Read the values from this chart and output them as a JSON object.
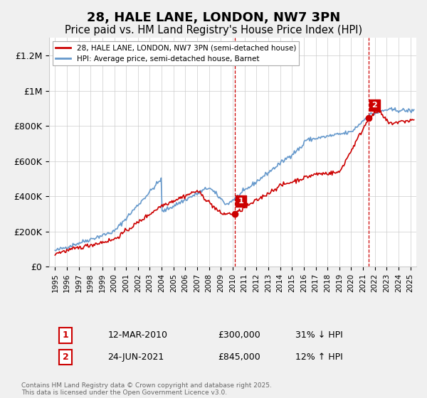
{
  "title": "28, HALE LANE, LONDON, NW7 3PN",
  "subtitle": "Price paid vs. HM Land Registry's House Price Index (HPI)",
  "title_fontsize": 13,
  "subtitle_fontsize": 10.5,
  "ylabel_ticks": [
    "£0",
    "£200K",
    "£400K",
    "£600K",
    "£800K",
    "£1M",
    "£1.2M"
  ],
  "ytick_values": [
    0,
    200000,
    400000,
    600000,
    800000,
    1000000,
    1200000
  ],
  "ylim": [
    0,
    1300000
  ],
  "xlim_start": 1994.5,
  "xlim_end": 2025.5,
  "xtick_years": [
    1995,
    1996,
    1997,
    1998,
    1999,
    2000,
    2001,
    2002,
    2003,
    2004,
    2005,
    2006,
    2007,
    2008,
    2009,
    2010,
    2011,
    2012,
    2013,
    2014,
    2015,
    2016,
    2017,
    2018,
    2019,
    2020,
    2021,
    2022,
    2023,
    2024,
    2025
  ],
  "red_line_color": "#cc0000",
  "blue_line_color": "#6699cc",
  "vline_color": "#cc0000",
  "vline_style": "--",
  "transaction1_x": 2010.2,
  "transaction1_y": 300000,
  "transaction1_label": "1",
  "transaction1_date": "12-MAR-2010",
  "transaction1_price": "£300,000",
  "transaction1_hpi": "31% ↓ HPI",
  "transaction2_x": 2021.5,
  "transaction2_y": 845000,
  "transaction2_label": "2",
  "transaction2_date": "24-JUN-2021",
  "transaction2_price": "£845,000",
  "transaction2_hpi": "12% ↑ HPI",
  "legend_line1": "28, HALE LANE, LONDON, NW7 3PN (semi-detached house)",
  "legend_line2": "HPI: Average price, semi-detached house, Barnet",
  "footnote": "Contains HM Land Registry data © Crown copyright and database right 2025.\nThis data is licensed under the Open Government Licence v3.0.",
  "bg_color": "#f0f0f0",
  "plot_bg_color": "#ffffff"
}
